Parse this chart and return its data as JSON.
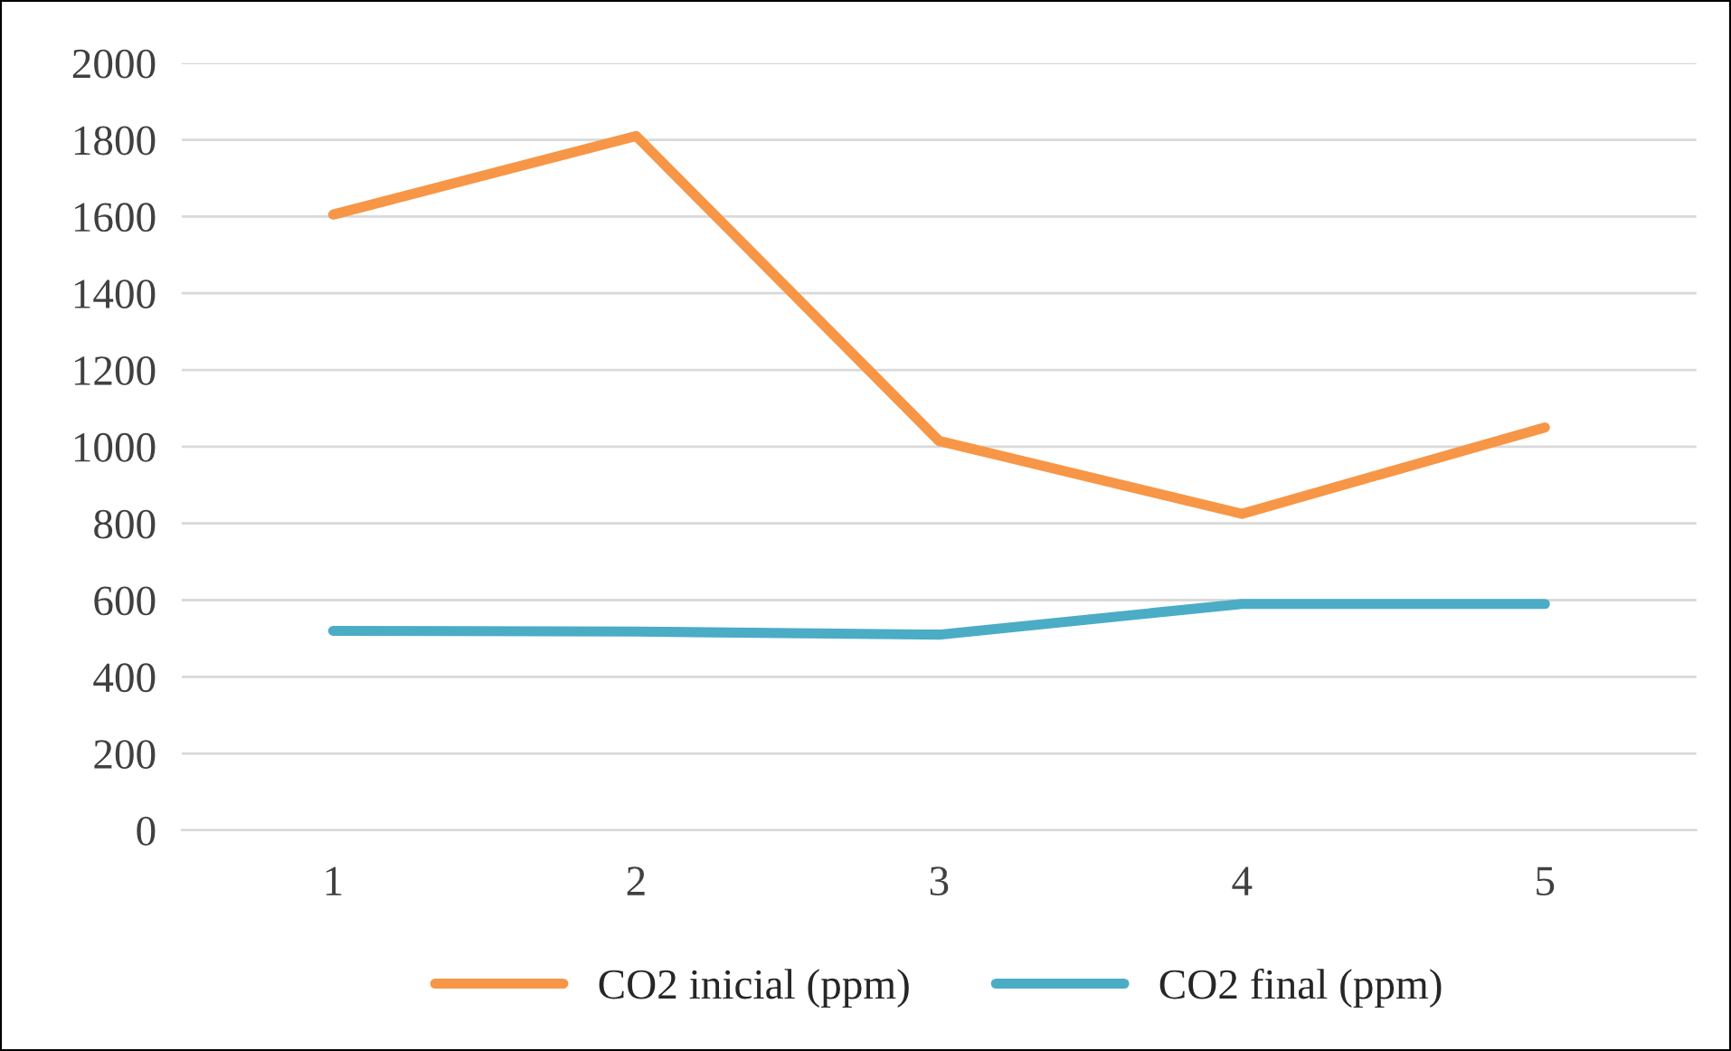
{
  "chart_data": {
    "type": "line",
    "categories": [
      "1",
      "2",
      "3",
      "4",
      "5"
    ],
    "series": [
      {
        "name": "CO2 inicial (ppm)",
        "color": "#f79646",
        "values": [
          1605,
          1810,
          1015,
          825,
          1050
        ]
      },
      {
        "name": "CO2 final (ppm)",
        "color": "#4bacc6",
        "values": [
          520,
          518,
          510,
          590,
          590
        ]
      }
    ],
    "ylim": [
      0,
      2000
    ],
    "yticks": [
      0,
      200,
      400,
      600,
      800,
      1000,
      1200,
      1400,
      1600,
      1800,
      2000
    ],
    "grid": "y",
    "legend": "bottom",
    "marker": "none",
    "line_style": "solid"
  }
}
